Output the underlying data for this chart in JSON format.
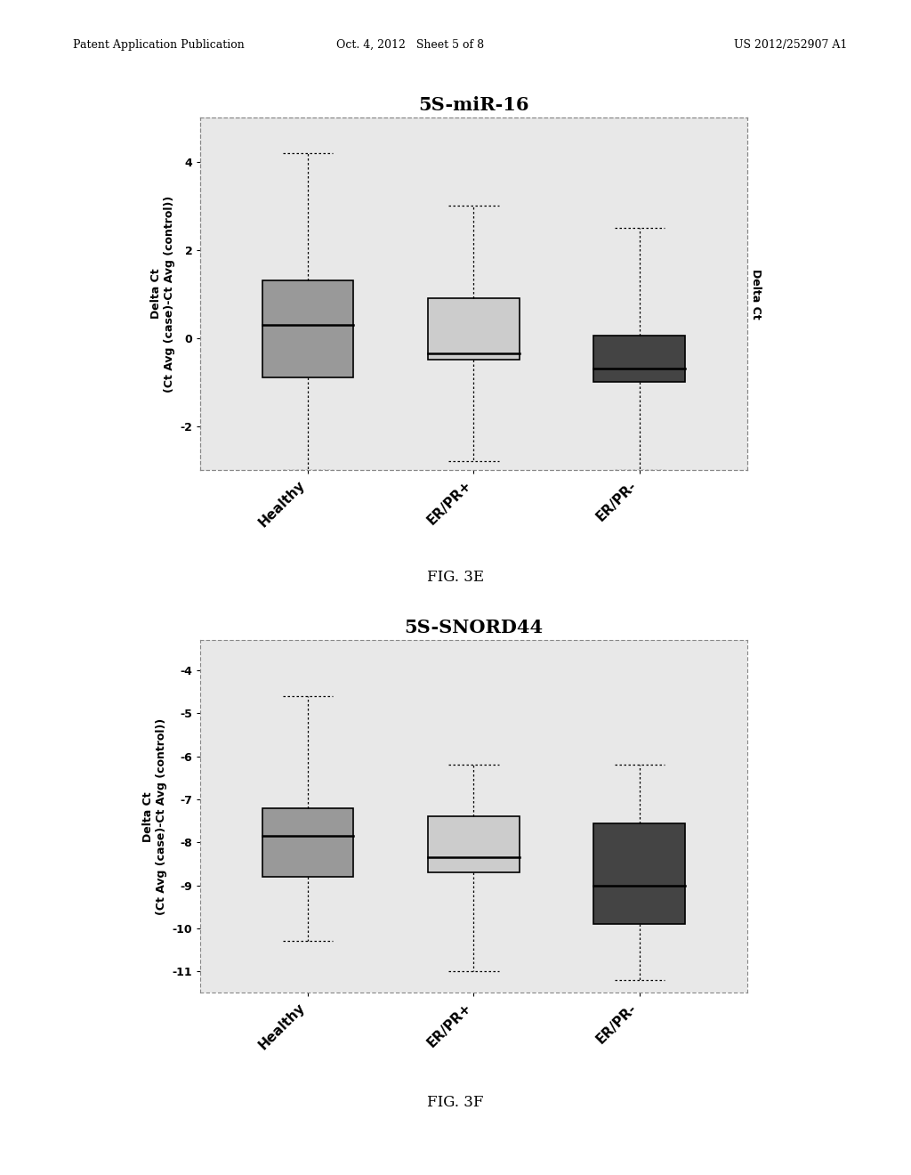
{
  "fig3e": {
    "title": "5S-miR-16",
    "ylabel_left": "Delta Ct\n(Ct Avg (case)-Ct Avg (control))",
    "ylabel_right": "Delta Ct",
    "categories": [
      "Healthy",
      "ER/PR+",
      "ER/PR-"
    ],
    "ylim": [
      -3.0,
      5.0
    ],
    "yticks": [
      -2,
      0,
      2,
      4
    ],
    "boxes": [
      {
        "whisker_low": -3.0,
        "q1": -0.9,
        "median": 0.3,
        "q3": 1.3,
        "whisker_high": 4.2,
        "color": "#999999"
      },
      {
        "whisker_low": -2.8,
        "q1": -0.5,
        "median": -0.35,
        "q3": 0.9,
        "whisker_high": 3.0,
        "color": "#cccccc"
      },
      {
        "whisker_low": -3.0,
        "q1": -1.0,
        "median": -0.7,
        "q3": 0.05,
        "whisker_high": 2.5,
        "color": "#444444"
      }
    ]
  },
  "fig3f": {
    "title": "5S-SNORD44",
    "ylabel_left": "Delta Ct\n(Ct Avg (case)-Ct Avg (control))",
    "ylabel_right": "",
    "categories": [
      "Healthy",
      "ER/PR+",
      "ER/PR-"
    ],
    "ylim": [
      -11.5,
      -3.3
    ],
    "yticks": [
      -11,
      -10,
      -9,
      -8,
      -7,
      -6,
      -5,
      -4
    ],
    "boxes": [
      {
        "whisker_low": -10.3,
        "q1": -8.8,
        "median": -7.85,
        "q3": -7.2,
        "whisker_high": -4.6,
        "color": "#999999"
      },
      {
        "whisker_low": -11.0,
        "q1": -8.7,
        "median": -8.35,
        "q3": -7.4,
        "whisker_high": -6.2,
        "color": "#cccccc"
      },
      {
        "whisker_low": -11.2,
        "q1": -9.9,
        "median": -9.0,
        "q3": -7.55,
        "whisker_high": -6.2,
        "color": "#444444"
      }
    ]
  },
  "fig_caption_e": "FIG. 3E",
  "fig_caption_f": "FIG. 3F",
  "background_color": "#ffffff",
  "plot_bg_color": "#e8e8e8",
  "header_left": "Patent Application Publication",
  "header_mid": "Oct. 4, 2012   Sheet 5 of 8",
  "header_right": "US 2012/252907 A1"
}
